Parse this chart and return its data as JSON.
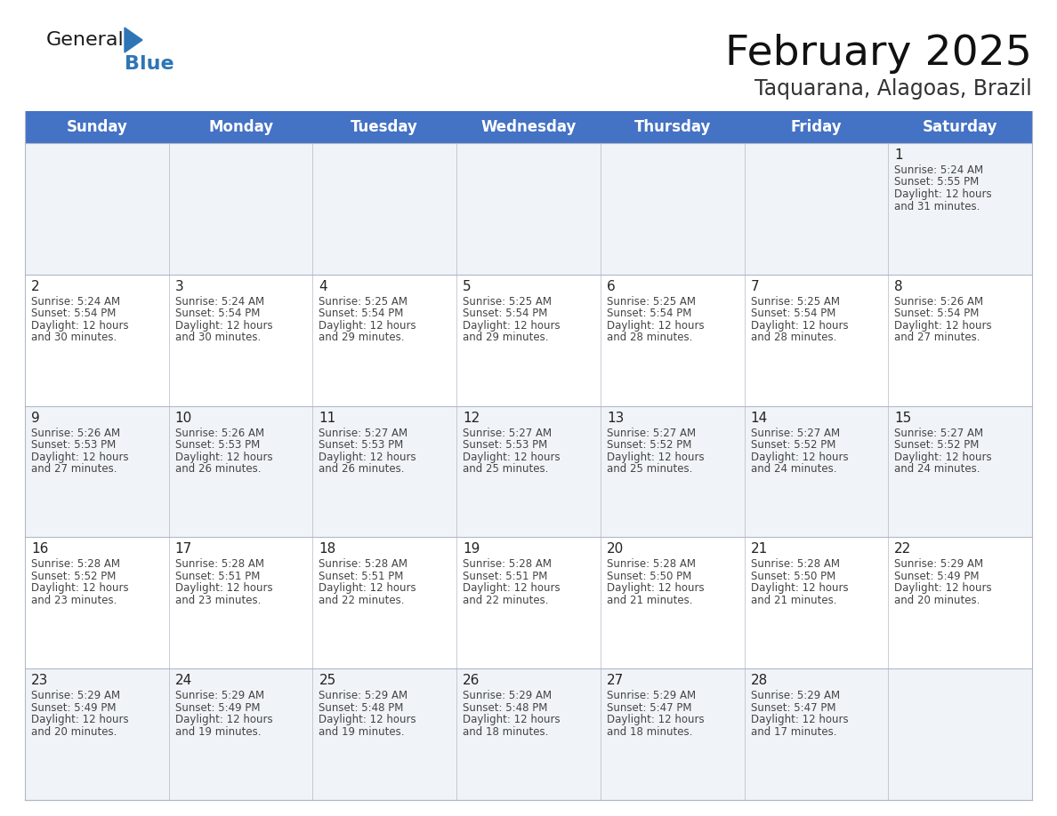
{
  "title": "February 2025",
  "subtitle": "Taquarana, Alagoas, Brazil",
  "days_of_week": [
    "Sunday",
    "Monday",
    "Tuesday",
    "Wednesday",
    "Thursday",
    "Friday",
    "Saturday"
  ],
  "header_bg": "#4472C4",
  "header_text": "#FFFFFF",
  "cell_bg_light": "#F0F4F8",
  "cell_bg_white": "#FFFFFF",
  "cell_border": "#B0B8C8",
  "day_number_color": "#222222",
  "text_color": "#444444",
  "title_color": "#111111",
  "subtitle_color": "#333333",
  "logo_general_color": "#1A1A1A",
  "logo_blue_color": "#2E75B6",
  "calendar_data": [
    [
      null,
      null,
      null,
      null,
      null,
      null,
      {
        "day": 1,
        "sunrise": "5:24 AM",
        "sunset": "5:55 PM",
        "daylight": "12 hours and 31 minutes."
      }
    ],
    [
      {
        "day": 2,
        "sunrise": "5:24 AM",
        "sunset": "5:54 PM",
        "daylight": "12 hours and 30 minutes."
      },
      {
        "day": 3,
        "sunrise": "5:24 AM",
        "sunset": "5:54 PM",
        "daylight": "12 hours and 30 minutes."
      },
      {
        "day": 4,
        "sunrise": "5:25 AM",
        "sunset": "5:54 PM",
        "daylight": "12 hours and 29 minutes."
      },
      {
        "day": 5,
        "sunrise": "5:25 AM",
        "sunset": "5:54 PM",
        "daylight": "12 hours and 29 minutes."
      },
      {
        "day": 6,
        "sunrise": "5:25 AM",
        "sunset": "5:54 PM",
        "daylight": "12 hours and 28 minutes."
      },
      {
        "day": 7,
        "sunrise": "5:25 AM",
        "sunset": "5:54 PM",
        "daylight": "12 hours and 28 minutes."
      },
      {
        "day": 8,
        "sunrise": "5:26 AM",
        "sunset": "5:54 PM",
        "daylight": "12 hours and 27 minutes."
      }
    ],
    [
      {
        "day": 9,
        "sunrise": "5:26 AM",
        "sunset": "5:53 PM",
        "daylight": "12 hours and 27 minutes."
      },
      {
        "day": 10,
        "sunrise": "5:26 AM",
        "sunset": "5:53 PM",
        "daylight": "12 hours and 26 minutes."
      },
      {
        "day": 11,
        "sunrise": "5:27 AM",
        "sunset": "5:53 PM",
        "daylight": "12 hours and 26 minutes."
      },
      {
        "day": 12,
        "sunrise": "5:27 AM",
        "sunset": "5:53 PM",
        "daylight": "12 hours and 25 minutes."
      },
      {
        "day": 13,
        "sunrise": "5:27 AM",
        "sunset": "5:52 PM",
        "daylight": "12 hours and 25 minutes."
      },
      {
        "day": 14,
        "sunrise": "5:27 AM",
        "sunset": "5:52 PM",
        "daylight": "12 hours and 24 minutes."
      },
      {
        "day": 15,
        "sunrise": "5:27 AM",
        "sunset": "5:52 PM",
        "daylight": "12 hours and 24 minutes."
      }
    ],
    [
      {
        "day": 16,
        "sunrise": "5:28 AM",
        "sunset": "5:52 PM",
        "daylight": "12 hours and 23 minutes."
      },
      {
        "day": 17,
        "sunrise": "5:28 AM",
        "sunset": "5:51 PM",
        "daylight": "12 hours and 23 minutes."
      },
      {
        "day": 18,
        "sunrise": "5:28 AM",
        "sunset": "5:51 PM",
        "daylight": "12 hours and 22 minutes."
      },
      {
        "day": 19,
        "sunrise": "5:28 AM",
        "sunset": "5:51 PM",
        "daylight": "12 hours and 22 minutes."
      },
      {
        "day": 20,
        "sunrise": "5:28 AM",
        "sunset": "5:50 PM",
        "daylight": "12 hours and 21 minutes."
      },
      {
        "day": 21,
        "sunrise": "5:28 AM",
        "sunset": "5:50 PM",
        "daylight": "12 hours and 21 minutes."
      },
      {
        "day": 22,
        "sunrise": "5:29 AM",
        "sunset": "5:49 PM",
        "daylight": "12 hours and 20 minutes."
      }
    ],
    [
      {
        "day": 23,
        "sunrise": "5:29 AM",
        "sunset": "5:49 PM",
        "daylight": "12 hours and 20 minutes."
      },
      {
        "day": 24,
        "sunrise": "5:29 AM",
        "sunset": "5:49 PM",
        "daylight": "12 hours and 19 minutes."
      },
      {
        "day": 25,
        "sunrise": "5:29 AM",
        "sunset": "5:48 PM",
        "daylight": "12 hours and 19 minutes."
      },
      {
        "day": 26,
        "sunrise": "5:29 AM",
        "sunset": "5:48 PM",
        "daylight": "12 hours and 18 minutes."
      },
      {
        "day": 27,
        "sunrise": "5:29 AM",
        "sunset": "5:47 PM",
        "daylight": "12 hours and 18 minutes."
      },
      {
        "day": 28,
        "sunrise": "5:29 AM",
        "sunset": "5:47 PM",
        "daylight": "12 hours and 17 minutes."
      },
      null
    ]
  ],
  "figsize": [
    11.88,
    9.18
  ],
  "dpi": 100
}
